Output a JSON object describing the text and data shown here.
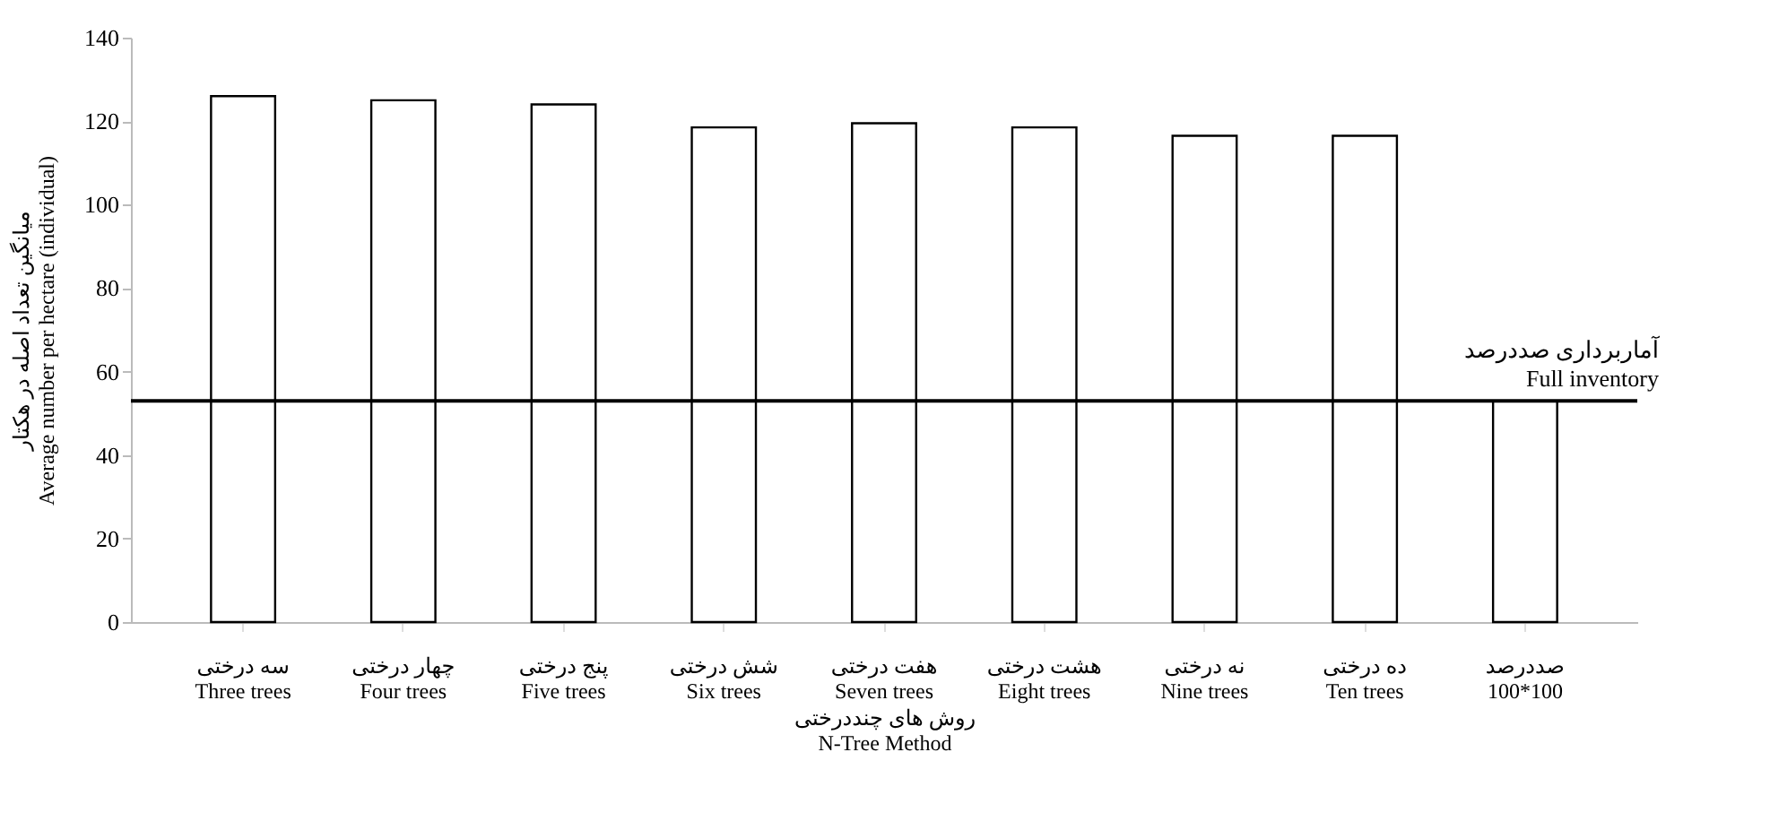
{
  "chart_data": {
    "type": "bar",
    "xlabel": "روش های چنددرختی\nN-Tree Method",
    "ylabel": "میانگین تعداد اصله در هکتار\nAverage number per hectare (individual)",
    "categories": [
      "سه درختی\nThree trees",
      "چهار درختی\nFour trees",
      "پنج درختی\nFive trees",
      "شش درختی\nSix trees",
      "هفت درختی\nSeven trees",
      "هشت درختی\nEight trees",
      "نه درختی\nNine trees",
      "ده درختی\nTen trees",
      "صددرصد\n100*100"
    ],
    "values": [
      126,
      125,
      124,
      118.5,
      119.5,
      118.5,
      116.5,
      116.5,
      53
    ],
    "color": "#ffffff",
    "ylim": [
      0,
      140
    ],
    "yticks": [
      0,
      20,
      40,
      60,
      80,
      100,
      120,
      140
    ],
    "ref_lines": [
      {
        "axis": "y",
        "value": 53,
        "label": "آماربرداری صددرصد\nFull inventory",
        "color": "#000000"
      }
    ],
    "grid": false
  }
}
